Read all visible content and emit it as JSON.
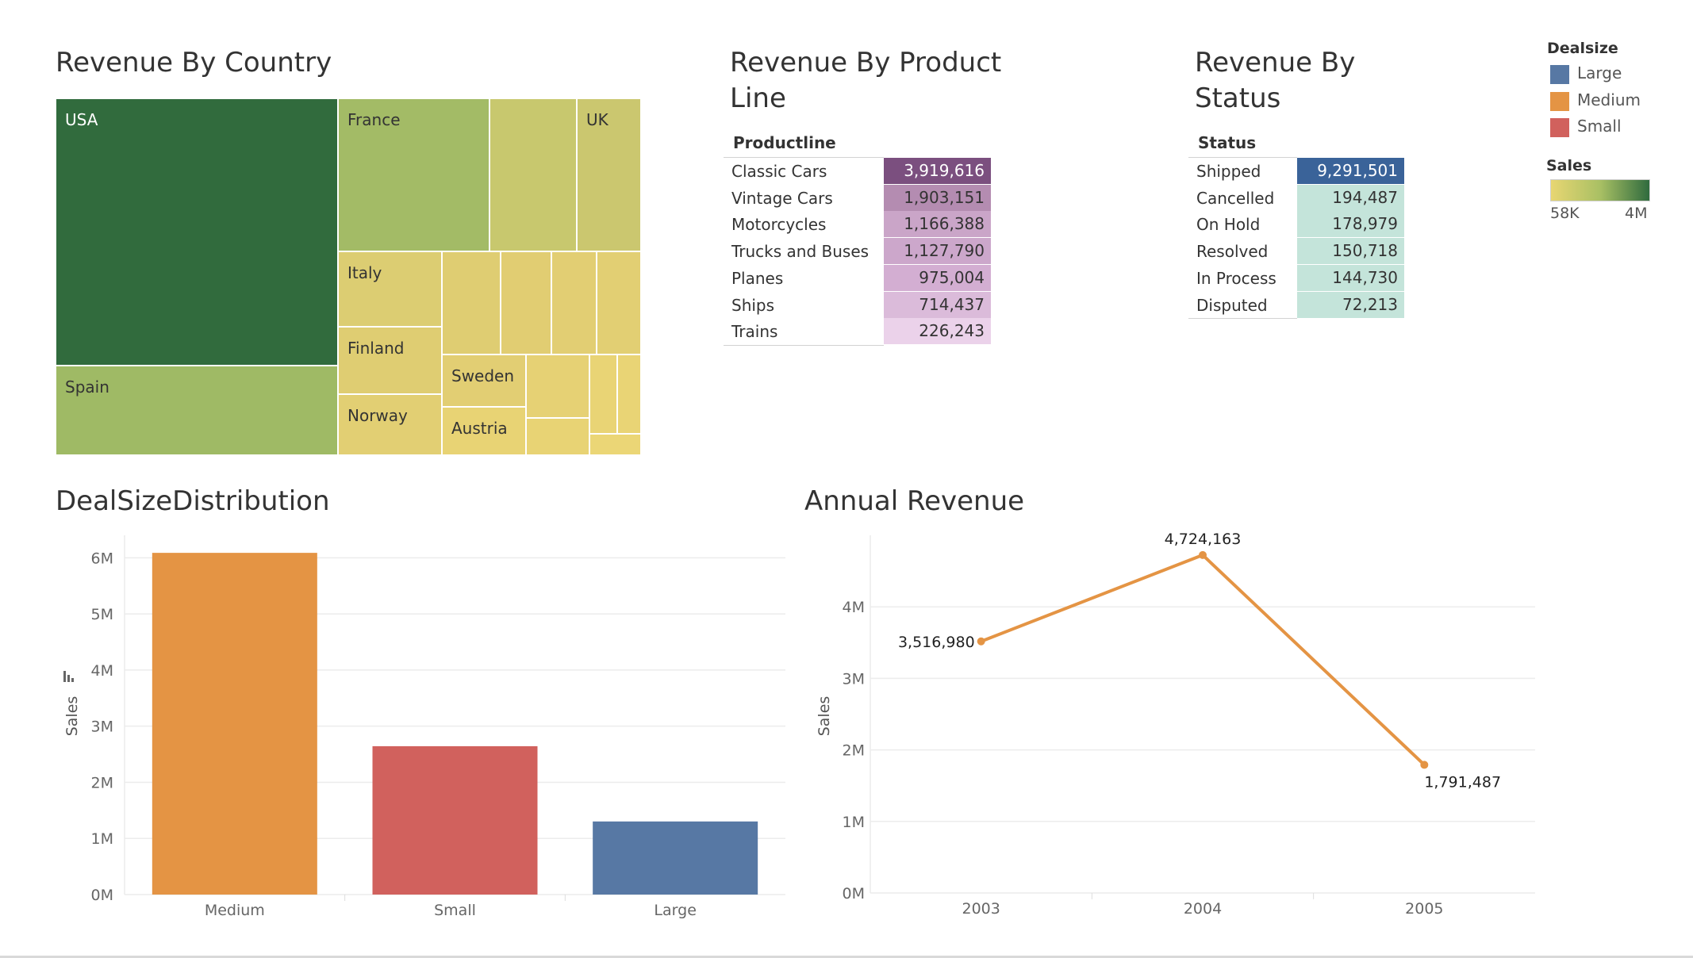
{
  "titles": {
    "country": "Revenue By Country",
    "product_line_1": "Revenue By Product",
    "product_line_2": "Line",
    "status_1": "Revenue By",
    "status_2": "Status",
    "dealsize": "DealSizeDistribution",
    "annual": "Annual Revenue"
  },
  "legend": {
    "dealsize_title": "Dealsize",
    "items": [
      {
        "label": "Large",
        "color": "#5778a4"
      },
      {
        "label": "Medium",
        "color": "#e49444"
      },
      {
        "label": "Small",
        "color": "#d1615d"
      }
    ],
    "sales_title": "Sales",
    "sales_min": "58K",
    "sales_max": "4M",
    "gradient": [
      "#e8d672",
      "#a9c064",
      "#2f6b3e"
    ]
  },
  "chart_data": [
    {
      "type": "treemap",
      "title": "Revenue By Country",
      "labeled": [
        {
          "name": "USA",
          "color": "#316b3d"
        },
        {
          "name": "France",
          "color": "#a3bb66"
        },
        {
          "name": "Spain",
          "color": "#9fba65"
        },
        {
          "name": "UK",
          "color": "#cbc76f"
        },
        {
          "name": "Italy",
          "color": "#dccd72"
        },
        {
          "name": "Finland",
          "color": "#dfcd72"
        },
        {
          "name": "Norway",
          "color": "#e2cf73"
        },
        {
          "name": "Sweden",
          "color": "#e2ce73"
        },
        {
          "name": "Austria",
          "color": "#e8d374"
        }
      ]
    },
    {
      "type": "table",
      "title": "Revenue By Product Line",
      "header": "Productline",
      "rows": [
        {
          "label": "Classic Cars",
          "value": "3,919,616",
          "color": "#7b4f7f",
          "text": "#ffffff"
        },
        {
          "label": "Vintage Cars",
          "value": "1,903,151",
          "color": "#b48cb1",
          "text": "#333333"
        },
        {
          "label": "Motorcycles",
          "value": "1,166,388",
          "color": "#caa5c8",
          "text": "#333333"
        },
        {
          "label": "Trucks and Buses",
          "value": "1,127,790",
          "color": "#cca7cb",
          "text": "#333333"
        },
        {
          "label": "Planes",
          "value": "975,004",
          "color": "#d3aed2",
          "text": "#333333"
        },
        {
          "label": "Ships",
          "value": "714,437",
          "color": "#dbbbda",
          "text": "#333333"
        },
        {
          "label": "Trains",
          "value": "226,243",
          "color": "#ebd2ea",
          "text": "#333333"
        }
      ]
    },
    {
      "type": "table",
      "title": "Revenue By Status",
      "header": "Status",
      "rows": [
        {
          "label": "Shipped",
          "value": "9,291,501",
          "color": "#3a6399",
          "text": "#ffffff"
        },
        {
          "label": "Cancelled",
          "value": "194,487",
          "color": "#c4e4da",
          "text": "#333333"
        },
        {
          "label": "On Hold",
          "value": "178,979",
          "color": "#c4e4da",
          "text": "#333333"
        },
        {
          "label": "Resolved",
          "value": "150,718",
          "color": "#c4e4da",
          "text": "#333333"
        },
        {
          "label": "In Process",
          "value": "144,730",
          "color": "#c4e4da",
          "text": "#333333"
        },
        {
          "label": "Disputed",
          "value": "72,213",
          "color": "#c4e4da",
          "text": "#333333"
        }
      ]
    },
    {
      "type": "bar",
      "title": "DealSizeDistribution",
      "ylabel": "Sales",
      "categories": [
        "Medium",
        "Small",
        "Large"
      ],
      "values": [
        6087432,
        2643077,
        1302119
      ],
      "colors": [
        "#e49444",
        "#d1615d",
        "#5778a4"
      ],
      "ylim": [
        0,
        6400000
      ],
      "yticks": [
        0,
        1000000,
        2000000,
        3000000,
        4000000,
        5000000,
        6000000
      ],
      "ytick_labels": [
        "0M",
        "1M",
        "2M",
        "3M",
        "4M",
        "5M",
        "6M"
      ]
    },
    {
      "type": "line",
      "title": "Annual Revenue",
      "ylabel": "Sales",
      "x": [
        "2003",
        "2004",
        "2005"
      ],
      "values": [
        3516980,
        4724163,
        1791487
      ],
      "value_labels": [
        "3,516,980",
        "4,724,163",
        "1,791,487"
      ],
      "color": "#e49444",
      "ylim": [
        0,
        5000000
      ],
      "yticks": [
        0,
        1000000,
        2000000,
        3000000,
        4000000
      ],
      "ytick_labels": [
        "0M",
        "1M",
        "2M",
        "3M",
        "4M"
      ]
    }
  ]
}
